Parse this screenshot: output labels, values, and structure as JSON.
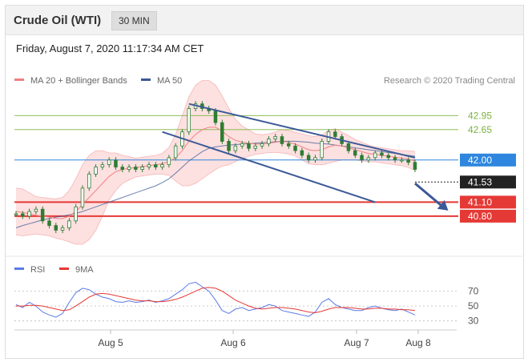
{
  "header": {
    "title": "Crude Oil (WTI)",
    "timeframe": "30 MIN"
  },
  "datetime": "Friday, August 7, 2020 11:17:34 AM CET",
  "legend": {
    "items": [
      {
        "label": "MA 20 + Bollinger Bands",
        "color": "#f08080"
      },
      {
        "label": "MA 50",
        "color": "#3b5998"
      }
    ],
    "source": "Research © 2020 Trading Central"
  },
  "colors": {
    "candle": "#2e7d32",
    "ma20": "#f08080",
    "ma50": "#3b5998",
    "band_fill": "#fddada",
    "resistance": "#7cb342",
    "pivot": "#2e86de",
    "support": "#e53935",
    "current": "#222222",
    "channel": "#3b5998",
    "rsi": "#5b7be8",
    "rsi_ma": "#e53935"
  },
  "chart_data": [
    {
      "type": "candlestick",
      "title": "Crude Oil (WTI)",
      "timeframe": "30 MIN",
      "x_ticks": [
        "Aug 5",
        "Aug 6",
        "Aug 7",
        "Aug 8"
      ],
      "ylim": [
        40.2,
        43.4
      ],
      "close_series": [
        40.85,
        40.8,
        40.9,
        40.95,
        40.7,
        40.6,
        40.5,
        40.55,
        40.7,
        41.0,
        41.4,
        41.7,
        41.85,
        41.9,
        42.0,
        41.85,
        41.8,
        41.85,
        41.8,
        41.85,
        41.9,
        41.85,
        41.9,
        42.05,
        42.3,
        42.6,
        43.1,
        43.2,
        43.1,
        43.05,
        42.8,
        42.4,
        42.2,
        42.3,
        42.35,
        42.25,
        42.3,
        42.35,
        42.45,
        42.5,
        42.35,
        42.3,
        42.2,
        42.1,
        42.0,
        42.05,
        42.4,
        42.6,
        42.5,
        42.35,
        42.2,
        42.1,
        42.0,
        42.05,
        42.15,
        42.1,
        42.05,
        42.0,
        42.0,
        41.95,
        41.8
      ],
      "ma20": [
        40.9,
        40.88,
        40.85,
        40.82,
        40.8,
        40.78,
        40.75,
        40.75,
        40.8,
        40.9,
        41.05,
        41.2,
        41.35,
        41.5,
        41.65,
        41.75,
        41.8,
        41.82,
        41.84,
        41.86,
        41.88,
        41.9,
        41.92,
        41.97,
        42.05,
        42.2,
        42.4,
        42.55,
        42.65,
        42.7,
        42.7,
        42.62,
        42.5,
        42.42,
        42.38,
        42.36,
        42.34,
        42.34,
        42.36,
        42.38,
        42.4,
        42.38,
        42.34,
        42.28,
        42.22,
        42.2,
        42.22,
        42.28,
        42.32,
        42.3,
        42.26,
        42.22,
        42.18,
        42.14,
        42.12,
        42.1,
        42.08,
        42.06,
        42.04,
        42.02,
        41.98
      ],
      "band_width": [
        0.5,
        0.5,
        0.45,
        0.4,
        0.4,
        0.4,
        0.42,
        0.45,
        0.55,
        0.7,
        0.85,
        0.9,
        0.85,
        0.7,
        0.5,
        0.4,
        0.3,
        0.25,
        0.2,
        0.2,
        0.2,
        0.2,
        0.22,
        0.3,
        0.5,
        0.75,
        0.95,
        1.05,
        1.05,
        1.0,
        0.9,
        0.75,
        0.6,
        0.45,
        0.35,
        0.28,
        0.22,
        0.2,
        0.2,
        0.22,
        0.25,
        0.25,
        0.25,
        0.28,
        0.3,
        0.3,
        0.32,
        0.35,
        0.35,
        0.3,
        0.26,
        0.22,
        0.2,
        0.18,
        0.16,
        0.16,
        0.16,
        0.16,
        0.16,
        0.18,
        0.2
      ],
      "ma50": [
        40.55,
        40.6,
        40.64,
        40.68,
        40.72,
        40.75,
        40.78,
        40.8,
        40.83,
        40.86,
        40.9,
        40.95,
        41.0,
        41.05,
        41.1,
        41.15,
        41.2,
        41.25,
        41.3,
        41.35,
        41.4,
        41.45,
        41.52,
        41.6,
        41.72,
        41.85,
        41.98,
        42.08,
        42.18,
        42.25,
        42.28,
        42.3,
        42.32,
        42.33,
        42.34,
        42.35,
        42.36,
        42.37,
        42.38,
        42.39,
        42.4,
        42.4,
        42.4,
        42.39,
        42.38,
        42.36,
        42.35,
        42.34,
        42.32,
        42.3,
        42.28,
        42.26,
        42.24,
        42.22,
        42.2,
        42.18,
        42.16,
        42.14,
        42.12,
        42.1,
        42.08
      ],
      "channel_upper": [
        [
          26,
          43.2
        ],
        [
          60,
          42.05
        ]
      ],
      "channel_lower": [
        [
          22,
          42.6
        ],
        [
          54,
          41.1
        ]
      ],
      "forecast_arrow": {
        "from": [
          60,
          41.5
        ],
        "to": [
          65,
          40.92
        ]
      },
      "levels": [
        {
          "value": 42.95,
          "label": "42.95",
          "kind": "resistance"
        },
        {
          "value": 42.65,
          "label": "42.65",
          "kind": "resistance"
        },
        {
          "value": 42.0,
          "label": "42.00",
          "kind": "pivot"
        },
        {
          "value": 41.53,
          "label": "41.53",
          "kind": "current"
        },
        {
          "value": 41.1,
          "label": "41.10",
          "kind": "support"
        },
        {
          "value": 40.8,
          "label": "40.80",
          "kind": "support"
        }
      ]
    },
    {
      "type": "line",
      "legend": [
        "RSI",
        "9MA"
      ],
      "ylim": [
        20,
        90
      ],
      "y_ticks": [
        "70",
        "50",
        "30"
      ],
      "series": [
        {
          "name": "RSI",
          "values": [
            52,
            48,
            55,
            50,
            42,
            38,
            35,
            40,
            55,
            68,
            74,
            72,
            66,
            62,
            60,
            56,
            55,
            57,
            55,
            56,
            58,
            55,
            57,
            60,
            66,
            72,
            80,
            82,
            76,
            70,
            58,
            44,
            40,
            46,
            48,
            44,
            46,
            48,
            52,
            50,
            44,
            42,
            40,
            38,
            36,
            42,
            55,
            60,
            52,
            48,
            46,
            44,
            44,
            48,
            50,
            47,
            45,
            44,
            46,
            42,
            38
          ]
        },
        {
          "name": "9MA",
          "values": [
            50,
            50,
            51,
            51,
            50,
            48,
            46,
            44,
            45,
            50,
            56,
            62,
            66,
            67,
            66,
            64,
            62,
            60,
            58,
            57,
            57,
            56,
            56,
            57,
            59,
            62,
            66,
            70,
            74,
            75,
            74,
            70,
            64,
            58,
            54,
            50,
            47,
            46,
            47,
            48,
            48,
            47,
            46,
            44,
            42,
            41,
            43,
            46,
            48,
            48,
            48,
            47,
            46,
            46,
            47,
            47,
            46,
            46,
            45,
            45,
            44
          ]
        }
      ]
    }
  ]
}
